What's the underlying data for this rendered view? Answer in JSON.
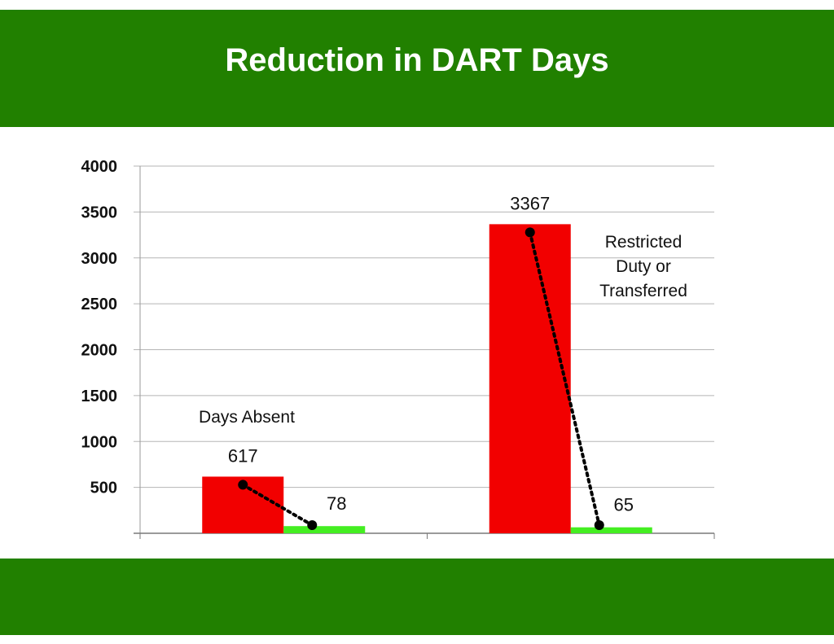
{
  "title": "Reduction in DART Days",
  "colors": {
    "band": "#218000",
    "before": "#f20000",
    "after": "#44ee22",
    "trend": "#000000"
  },
  "chart_data": {
    "type": "bar",
    "title": "Reduction in DART Days",
    "xlabel": "",
    "ylabel": "",
    "ylim": [
      0,
      4000
    ],
    "yticks": [
      500,
      1000,
      1500,
      2000,
      2500,
      3000,
      3500,
      4000
    ],
    "grid": true,
    "legend": "none",
    "categories": [
      "Days Absent",
      "Restricted Duty or Transferred"
    ],
    "series": [
      {
        "values": [
          617,
          3367
        ]
      },
      {
        "values": [
          78,
          65
        ]
      }
    ],
    "data_labels": [
      [
        "617",
        "78"
      ],
      [
        "3367",
        "65"
      ]
    ],
    "category_annotations": [
      {
        "lines": [
          "Days Absent"
        ]
      },
      {
        "lines": [
          "Restricted",
          "Duty or",
          "Transferred"
        ]
      }
    ]
  }
}
